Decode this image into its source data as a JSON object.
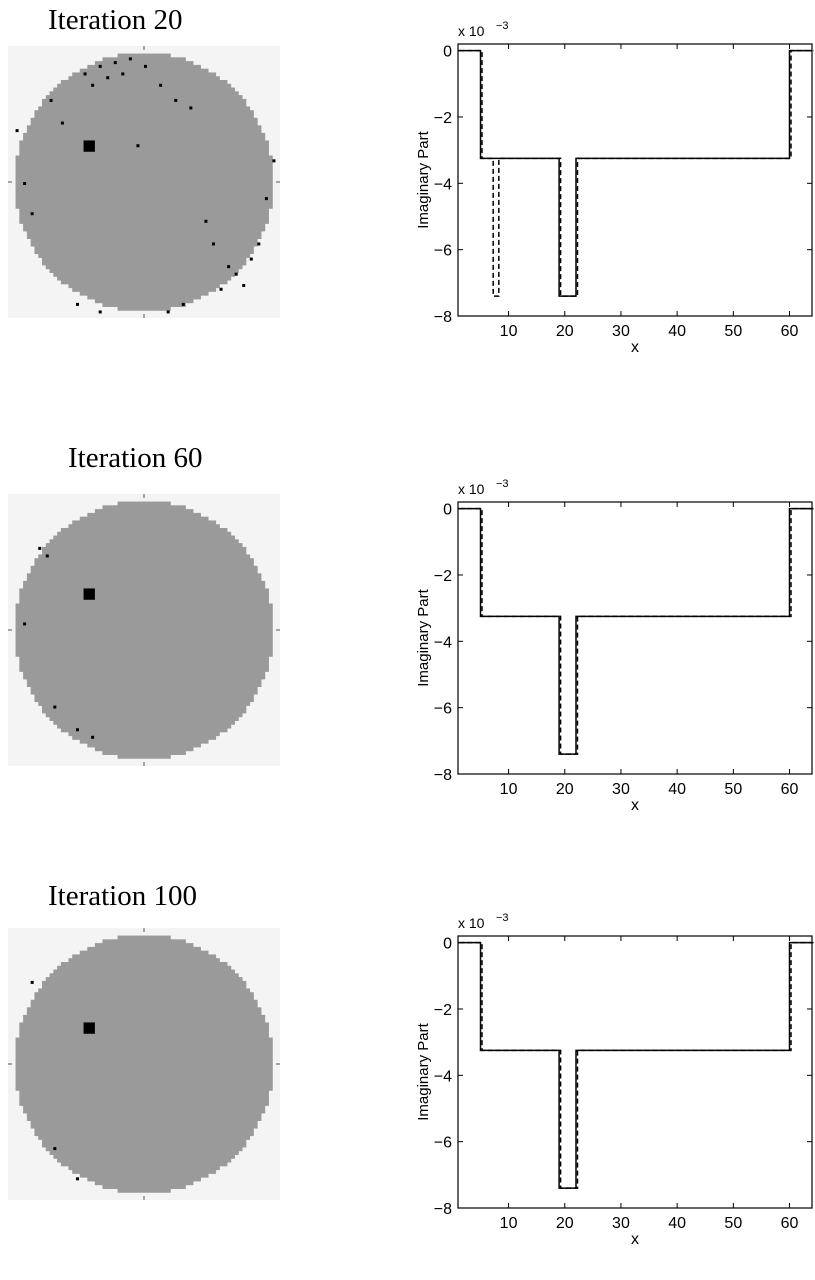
{
  "panels": [
    {
      "title": "Iteration 20",
      "scatter_dots": [
        [
          20,
          7,
          3
        ],
        [
          24,
          5,
          3
        ],
        [
          28,
          4,
          3
        ],
        [
          32,
          3,
          3
        ],
        [
          22,
          10,
          3
        ],
        [
          26,
          8,
          3
        ],
        [
          30,
          7,
          3
        ],
        [
          36,
          5,
          3
        ],
        [
          40,
          10,
          3
        ],
        [
          44,
          14,
          3
        ],
        [
          48,
          16,
          3
        ],
        [
          2,
          22,
          3
        ],
        [
          4,
          36,
          3
        ],
        [
          6,
          44,
          3
        ],
        [
          11,
          14,
          3
        ],
        [
          34,
          26,
          3
        ],
        [
          52,
          46,
          3
        ],
        [
          54,
          52,
          3
        ],
        [
          58,
          58,
          3
        ],
        [
          60,
          60,
          3
        ],
        [
          62,
          63,
          3
        ],
        [
          18,
          68,
          3
        ],
        [
          24,
          70,
          3
        ],
        [
          42,
          70,
          3
        ],
        [
          46,
          68,
          3
        ],
        [
          66,
          52,
          3
        ],
        [
          68,
          40,
          3
        ],
        [
          70,
          30,
          3
        ],
        [
          56,
          64,
          3
        ],
        [
          64,
          56,
          3
        ],
        [
          14,
          20,
          3
        ]
      ],
      "square": [
        20,
        25
      ],
      "chart_data": {
        "type": "line",
        "xlabel": "x",
        "ylabel": "Imaginary Part",
        "y_exponent_label": "x 10",
        "y_exponent_power": "−3",
        "xlim": [
          1,
          64
        ],
        "ylim": [
          -8,
          0.2
        ],
        "xticks": [
          10,
          20,
          30,
          40,
          50,
          60
        ],
        "yticks": [
          0,
          -2,
          -4,
          -6,
          -8
        ],
        "series": [
          {
            "style": "solid",
            "x": [
              1,
              5,
              5,
              19,
              19,
              22,
              22,
              60,
              60,
              64
            ],
            "y": [
              0,
              0,
              -3.25,
              -3.25,
              -7.4,
              -7.4,
              -3.25,
              -3.25,
              0,
              0
            ]
          },
          {
            "style": "dashed",
            "x": [
              1,
              5,
              5,
              7,
              7,
              8,
              8,
              19,
              19,
              22,
              22,
              60,
              60,
              64
            ],
            "y": [
              0,
              0,
              -3.25,
              -3.25,
              -7.4,
              -7.4,
              -3.25,
              -3.25,
              -7.4,
              -7.4,
              -3.25,
              -3.25,
              0,
              0
            ]
          }
        ]
      }
    },
    {
      "title": "Iteration 60",
      "scatter_dots": [
        [
          8,
          14,
          3
        ],
        [
          10,
          16,
          3
        ],
        [
          4,
          34,
          3
        ],
        [
          12,
          56,
          3
        ],
        [
          18,
          62,
          3
        ],
        [
          22,
          64,
          3
        ]
      ],
      "square": [
        20,
        25
      ],
      "chart_data": {
        "type": "line",
        "xlabel": "x",
        "ylabel": "Imaginary Part",
        "y_exponent_label": "x 10",
        "y_exponent_power": "−3",
        "xlim": [
          1,
          64
        ],
        "ylim": [
          -8,
          0.2
        ],
        "xticks": [
          10,
          20,
          30,
          40,
          50,
          60
        ],
        "yticks": [
          0,
          -2,
          -4,
          -6,
          -8
        ],
        "series": [
          {
            "style": "solid",
            "x": [
              1,
              5,
              5,
              19,
              19,
              22,
              22,
              60,
              60,
              64
            ],
            "y": [
              0,
              0,
              -3.25,
              -3.25,
              -7.4,
              -7.4,
              -3.25,
              -3.25,
              0,
              0
            ]
          },
          {
            "style": "dashed",
            "x": [
              1,
              5,
              5,
              19,
              19,
              22,
              22,
              60,
              60,
              64
            ],
            "y": [
              0,
              0,
              -3.25,
              -3.25,
              -7.4,
              -7.4,
              -3.25,
              -3.25,
              0,
              0
            ]
          }
        ]
      }
    },
    {
      "title": "Iteration 100",
      "scatter_dots": [
        [
          6,
          14,
          3
        ],
        [
          12,
          58,
          3
        ],
        [
          18,
          66,
          3
        ]
      ],
      "square": [
        20,
        25
      ],
      "chart_data": {
        "type": "line",
        "xlabel": "x",
        "ylabel": "Imaginary Part",
        "y_exponent_label": "x 10",
        "y_exponent_power": "−3",
        "xlim": [
          1,
          64
        ],
        "ylim": [
          -8,
          0.2
        ],
        "xticks": [
          10,
          20,
          30,
          40,
          50,
          60
        ],
        "yticks": [
          0,
          -2,
          -4,
          -6,
          -8
        ],
        "series": [
          {
            "style": "solid",
            "x": [
              1,
              5,
              5,
              19,
              19,
              22,
              22,
              60,
              60,
              64
            ],
            "y": [
              0,
              0,
              -3.25,
              -3.25,
              -7.4,
              -7.4,
              -3.25,
              -3.25,
              0,
              0
            ]
          },
          {
            "style": "dashed",
            "x": [
              1,
              5,
              5,
              19,
              19,
              22,
              22,
              60,
              60,
              64
            ],
            "y": [
              0,
              0,
              -3.25,
              -3.25,
              -7.4,
              -7.4,
              -3.25,
              -3.25,
              0,
              0
            ]
          }
        ]
      }
    }
  ],
  "colors": {
    "disk": "#9a9a9a",
    "background": "#f4f4f4",
    "defect": "#000000",
    "line": "#000000"
  }
}
